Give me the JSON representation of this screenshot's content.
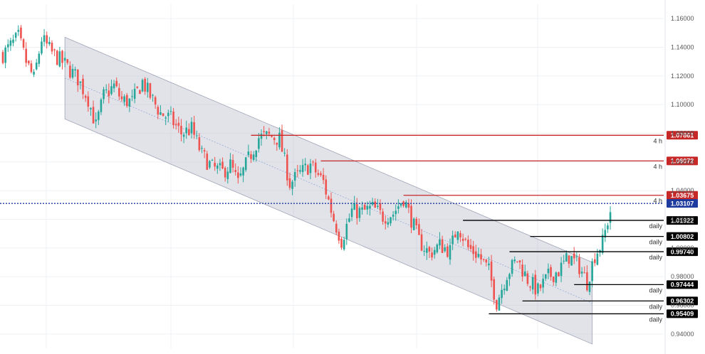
{
  "chart_data": {
    "type": "candlestick",
    "title": "",
    "xlabel": "",
    "ylabel": "",
    "ylim": [
      0.93,
      1.17
    ],
    "yticks": [
      0.94,
      0.96,
      0.98,
      1.0,
      1.02,
      1.04,
      1.06,
      1.08,
      1.1,
      1.12,
      1.14,
      1.16
    ],
    "ytick_labels": [
      "0.94000",
      "0.96000",
      "0.98000",
      "1.00000",
      "1.02000",
      "1.04000",
      "1.06000",
      "1.08000",
      "1.10000",
      "1.12000",
      "1.14000",
      "1.16000"
    ],
    "grid": true,
    "colors": {
      "up": "#26a69a",
      "down": "#ef5350",
      "resistance": "#c62828",
      "support": "#000000",
      "current": "#1e3a9e",
      "channel_fill": "#b8bccb"
    },
    "close_path": [
      [
        0,
        1.135
      ],
      [
        6,
        1.147
      ],
      [
        9,
        1.13
      ],
      [
        12,
        1.118
      ],
      [
        15,
        1.146
      ],
      [
        19,
        1.136
      ],
      [
        24,
        1.128
      ],
      [
        29,
        1.118
      ],
      [
        33,
        1.104
      ],
      [
        36,
        1.085
      ],
      [
        39,
        1.106
      ],
      [
        43,
        1.113
      ],
      [
        46,
        1.103
      ],
      [
        50,
        1.102
      ],
      [
        54,
        1.116
      ],
      [
        57,
        1.106
      ],
      [
        61,
        1.094
      ],
      [
        65,
        1.09
      ],
      [
        69,
        1.08
      ],
      [
        73,
        1.083
      ],
      [
        77,
        1.065
      ],
      [
        81,
        1.056
      ],
      [
        85,
        1.053
      ],
      [
        88,
        1.058
      ],
      [
        91,
        1.045
      ],
      [
        95,
        1.062
      ],
      [
        99,
        1.077
      ],
      [
        103,
        1.078
      ],
      [
        107,
        1.076
      ],
      [
        111,
        1.045
      ],
      [
        115,
        1.052
      ],
      [
        119,
        1.058
      ],
      [
        124,
        1.046
      ],
      [
        128,
        1.02
      ],
      [
        131,
        1.005
      ],
      [
        135,
        1.026
      ],
      [
        139,
        1.025
      ],
      [
        143,
        1.028
      ],
      [
        147,
        1.022
      ],
      [
        151,
        1.024
      ],
      [
        155,
        1.035
      ],
      [
        158,
        1.02
      ],
      [
        161,
        1.005
      ],
      [
        165,
        0.996
      ],
      [
        169,
        1.002
      ],
      [
        173,
        0.998
      ],
      [
        176,
        1.016
      ],
      [
        180,
        1.0
      ],
      [
        184,
        0.995
      ],
      [
        188,
        0.984
      ],
      [
        191,
        0.962
      ],
      [
        195,
        0.982
      ],
      [
        199,
        0.992
      ],
      [
        203,
        0.978
      ],
      [
        207,
        0.97
      ],
      [
        211,
        0.98
      ],
      [
        215,
        0.984
      ],
      [
        219,
        0.994
      ],
      [
        223,
        0.987
      ],
      [
        226,
        0.976
      ],
      [
        229,
        0.995
      ],
      [
        232,
        1.004
      ],
      [
        235,
        1.026
      ]
    ],
    "n_bars": 236,
    "channel": {
      "upper": [
        [
          24,
          1.147
        ],
        [
          228,
          0.99
        ]
      ],
      "lower": [
        [
          24,
          1.09
        ],
        [
          228,
          0.933
        ]
      ],
      "midline": true
    },
    "levels": [
      {
        "value": 1.07861,
        "label": "1.07861",
        "timeframe": "4 h",
        "kind": "resistance",
        "from_bar": 96
      },
      {
        "value": 1.06072,
        "label": "1.06072",
        "timeframe": "4 h",
        "kind": "resistance",
        "from_bar": 123
      },
      {
        "value": 1.03675,
        "label": "1.03675",
        "timeframe": "4 h",
        "kind": "resistance",
        "from_bar": 155
      },
      {
        "value": 1.01922,
        "label": "1.01922",
        "timeframe": "daily",
        "kind": "support",
        "from_bar": 178
      },
      {
        "value": 1.00802,
        "label": "1.00802",
        "timeframe": "daily",
        "kind": "support",
        "from_bar": 204
      },
      {
        "value": 0.9974,
        "label": "0.99740",
        "timeframe": "daily",
        "kind": "support",
        "from_bar": 196
      },
      {
        "value": 0.97444,
        "label": "0.97444",
        "timeframe": "daily",
        "kind": "support",
        "from_bar": 221
      },
      {
        "value": 0.96302,
        "label": "0.96302",
        "timeframe": "daily",
        "kind": "support",
        "from_bar": 201
      },
      {
        "value": 0.95409,
        "label": "0.95409",
        "timeframe": "daily",
        "kind": "support",
        "from_bar": 188
      }
    ],
    "current_price": {
      "value": 1.03107,
      "label": "1.03107"
    }
  }
}
